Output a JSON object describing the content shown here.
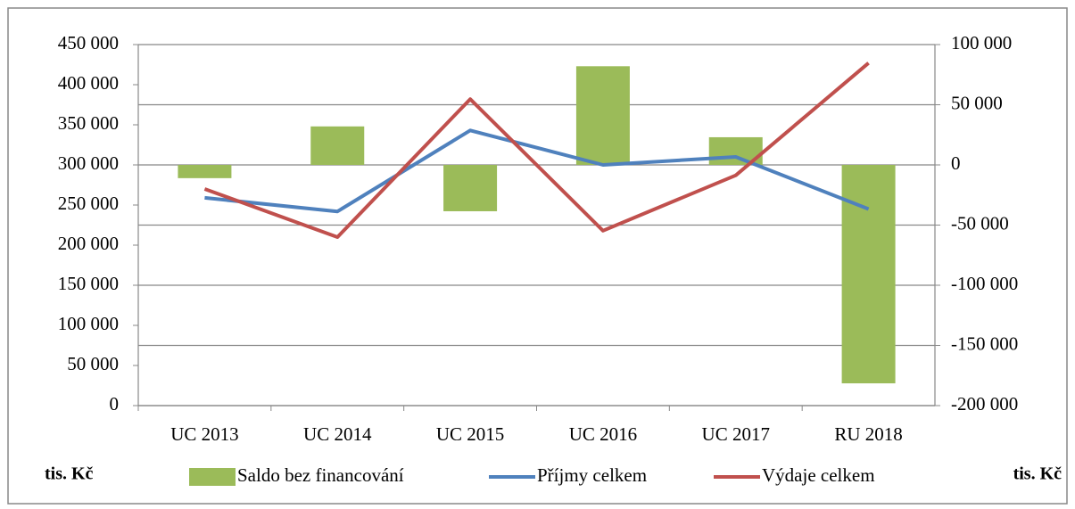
{
  "chart_data": {
    "type": "combo",
    "categories": [
      "UC 2013",
      "UC 2014",
      "UC 2015",
      "UC 2016",
      "UC 2017",
      "RU 2018"
    ],
    "series": [
      {
        "name": "Saldo bez financování",
        "type": "bar",
        "axis": "y2",
        "color": "#9bbb59",
        "values": [
          -11000,
          32000,
          -38500,
          82000,
          23000,
          -181500
        ]
      },
      {
        "name": "Příjmy celkem",
        "type": "line",
        "color": "#4f81bd",
        "values": [
          259000,
          242000,
          343000,
          300000,
          310000,
          245000
        ]
      },
      {
        "name": "Výdaje celkem",
        "type": "line",
        "color": "#c0504d",
        "values": [
          270000,
          210000,
          382000,
          218000,
          287000,
          427000
        ]
      }
    ],
    "ylim": [
      0,
      450000
    ],
    "yticks": [
      0,
      {
        "value": 50000,
        "label": "50 000"
      },
      {
        "value": 100000,
        "label": "100 000"
      },
      {
        "value": 150000,
        "label": "150 000"
      },
      {
        "value": 200000,
        "label": "200 000"
      },
      {
        "value": 250000,
        "label": "250 000"
      },
      {
        "value": 300000,
        "label": "300 000"
      },
      {
        "value": 350000,
        "label": "350 000"
      },
      {
        "value": 400000,
        "label": "400 000"
      },
      {
        "value": 450000,
        "label": "450 000"
      }
    ],
    "y2lim": [
      -200000,
      100000
    ],
    "y2ticks": [
      {
        "value": -200000,
        "label": "-200 000"
      },
      {
        "value": -150000,
        "label": "-150 000"
      },
      {
        "value": -100000,
        "label": "-100 000"
      },
      {
        "value": -50000,
        "label": "-50 000"
      },
      0,
      {
        "value": 50000,
        "label": "50 000"
      },
      {
        "value": 100000,
        "label": "100 000"
      }
    ],
    "y_label": "tis. Kč",
    "y2_label": "tis. Kč",
    "grid": "y2",
    "legend": "bottom"
  }
}
